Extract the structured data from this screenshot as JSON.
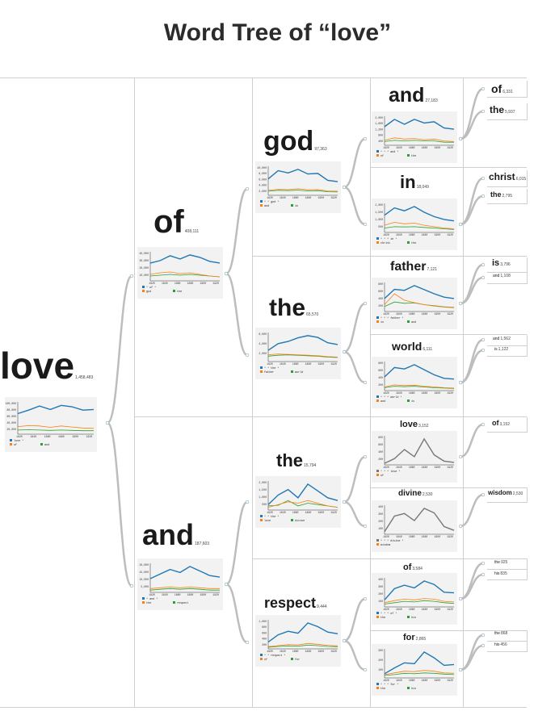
{
  "title": "Word Tree of “love”",
  "colors": {
    "blue": "#1f77b4",
    "orange": "#ff7f0e",
    "green": "#2ca02c",
    "gray": "#777777",
    "connector": "#bdbdbd"
  },
  "axis": {
    "years": [
      "1820",
      "1840",
      "1860",
      "1880",
      "1900",
      "1920"
    ]
  },
  "nodes": {
    "love": {
      "word": "love",
      "count": "1,458,483",
      "legend": [
        "love *",
        "of",
        "and"
      ],
      "yticks": [
        "100,000",
        "80,000",
        "60,000",
        "40,000",
        "20,000"
      ],
      "series": [
        [
          60,
          70,
          82,
          72,
          84,
          80,
          70,
          72
        ],
        [
          22,
          25,
          24,
          20,
          24,
          21,
          18,
          17
        ],
        [
          12,
          13,
          12,
          11,
          12,
          11,
          10,
          10
        ]
      ]
    },
    "of": {
      "word": "of",
      "count": "408,111",
      "legend": [
        "* of *",
        "god",
        "the"
      ],
      "yticks": [
        "40,000",
        "30,000",
        "20,000",
        "10,000"
      ],
      "series": [
        [
          22,
          25,
          31,
          27,
          32,
          29,
          24,
          22
        ],
        [
          8,
          10,
          11,
          9,
          10,
          8,
          6,
          5
        ],
        [
          6,
          7,
          8,
          7,
          8,
          7,
          6,
          5
        ]
      ]
    },
    "and": {
      "word": "and",
      "count": "187,603",
      "legend": [
        "* and *",
        "the",
        "respect"
      ],
      "yticks": [
        "20,000",
        "15,000",
        "10,000",
        "5,000"
      ],
      "series": [
        [
          9,
          12,
          15,
          13,
          17,
          14,
          11,
          10
        ],
        [
          2.5,
          3,
          3.5,
          3,
          3.5,
          3,
          2.5,
          2.5
        ],
        [
          1.5,
          2,
          2.5,
          2,
          2.5,
          2,
          1.5,
          1.5
        ]
      ]
    },
    "god": {
      "word": "god",
      "count": "97,363",
      "legend": [
        "* * god *",
        "and",
        "in"
      ],
      "yticks": [
        "10,000",
        "8,000",
        "6,000",
        "4,000",
        "2,000"
      ],
      "series": [
        [
          6000,
          9000,
          8200,
          9500,
          7800,
          8000,
          5500,
          5000
        ],
        [
          1800,
          2200,
          2100,
          2400,
          2000,
          2100,
          1600,
          1500
        ],
        [
          1500,
          1800,
          1700,
          1900,
          1600,
          1700,
          1300,
          1200
        ]
      ]
    },
    "the_of": {
      "word": "the",
      "count": "65,570",
      "legend": [
        "* * the *",
        "father",
        "world"
      ],
      "yticks": [
        "6,000",
        "4,000",
        "2,000"
      ],
      "series": [
        [
          2500,
          4000,
          4500,
          5300,
          5800,
          5400,
          4200,
          3800
        ],
        [
          1500,
          1700,
          1600,
          1500,
          1400,
          1300,
          1100,
          1000
        ],
        [
          1200,
          1400,
          1500,
          1400,
          1300,
          1200,
          1000,
          900
        ]
      ]
    },
    "the_and": {
      "word": "the",
      "count": "15,794",
      "legend": [
        "* * the *",
        "love",
        "divine"
      ],
      "yticks": [
        "2,000",
        "1,500",
        "1,000",
        "500"
      ],
      "series": [
        [
          400,
          1100,
          1500,
          900,
          1900,
          1400,
          900,
          700
        ],
        [
          200,
          400,
          600,
          500,
          700,
          500,
          300,
          200
        ],
        [
          300,
          350,
          700,
          300,
          500,
          400,
          300,
          200
        ]
      ]
    },
    "respect": {
      "word": "respect",
      "count": "9,444",
      "legend": [
        "* * respect *",
        "of",
        "for"
      ],
      "yticks": [
        "1,000",
        "800",
        "600",
        "400",
        "200"
      ],
      "series": [
        [
          250,
          520,
          650,
          580,
          960,
          820,
          620,
          560
        ],
        [
          80,
          120,
          160,
          150,
          200,
          170,
          130,
          110
        ],
        [
          60,
          90,
          110,
          100,
          140,
          120,
          90,
          80
        ]
      ]
    },
    "and3": {
      "word": "and",
      "count": "27,183",
      "legend": [
        "* * * and *",
        "of",
        "the"
      ],
      "yticks": [
        "2,000",
        "1,600",
        "1,200",
        "800",
        "400"
      ],
      "series": [
        [
          1500,
          2100,
          1700,
          2100,
          1800,
          1900,
          1400,
          1300
        ],
        [
          400,
          600,
          500,
          550,
          450,
          500,
          350,
          300
        ],
        [
          300,
          400,
          350,
          400,
          350,
          350,
          250,
          250
        ]
      ]
    },
    "in3": {
      "word": "in",
      "count": "18,049",
      "legend": [
        "* * * in *",
        "christ",
        "the"
      ],
      "yticks": [
        "2,000",
        "1,500",
        "1,000",
        "500"
      ],
      "series": [
        [
          1200,
          1700,
          1500,
          1800,
          1400,
          1100,
          900,
          800
        ],
        [
          500,
          700,
          600,
          650,
          500,
          400,
          300,
          250
        ],
        [
          300,
          400,
          380,
          400,
          350,
          300,
          250,
          200
        ]
      ]
    },
    "father": {
      "word": "father",
      "count": "7,121",
      "legend": [
        "* * * father *",
        "is",
        "and"
      ],
      "yticks": [
        "800",
        "600",
        "400",
        "200"
      ],
      "series": [
        [
          380,
          650,
          620,
          760,
          640,
          520,
          420,
          380
        ],
        [
          200,
          520,
          330,
          260,
          200,
          160,
          130,
          110
        ],
        [
          150,
          280,
          240,
          250,
          200,
          170,
          140,
          120
        ]
      ]
    },
    "world": {
      "word": "world",
      "count": "6,111",
      "legend": [
        "* * * world *",
        "and",
        "is"
      ],
      "yticks": [
        "800",
        "600",
        "400",
        "200"
      ],
      "series": [
        [
          380,
          640,
          600,
          720,
          580,
          440,
          340,
          320
        ],
        [
          100,
          160,
          140,
          150,
          120,
          100,
          80,
          70
        ],
        [
          80,
          120,
          110,
          120,
          100,
          80,
          70,
          60
        ]
      ]
    },
    "love3": {
      "word": "love",
      "count": "3,152",
      "legend": [
        "* * * love *",
        "of"
      ],
      "yticks": [
        "800",
        "600",
        "400",
        "200"
      ],
      "series": [
        [
          50,
          200,
          490,
          260,
          830,
          320,
          120,
          80
        ]
      ]
    },
    "divine": {
      "word": "divine",
      "count": "2,530",
      "legend": [
        "* * * divine *",
        "wisdom"
      ],
      "yticks": [
        "400",
        "300",
        "200",
        "100"
      ],
      "series": [
        [
          40,
          280,
          320,
          210,
          400,
          330,
          120,
          60
        ]
      ]
    },
    "of3": {
      "word": "of",
      "count": "3,584",
      "legend": [
        "* * * of *",
        "the",
        "his"
      ],
      "yticks": [
        "400",
        "300",
        "200",
        "100"
      ],
      "series": [
        [
          100,
          260,
          310,
          270,
          370,
          320,
          210,
          200
        ],
        [
          60,
          90,
          110,
          100,
          120,
          110,
          80,
          70
        ],
        [
          40,
          60,
          80,
          70,
          90,
          80,
          60,
          50
        ]
      ]
    },
    "for3": {
      "word": "for",
      "count": "2,865",
      "legend": [
        "* * * for *",
        "the",
        "his"
      ],
      "yticks": [
        "300",
        "200",
        "100"
      ],
      "series": [
        [
          50,
          120,
          180,
          170,
          310,
          240,
          150,
          160
        ],
        [
          40,
          60,
          80,
          75,
          90,
          80,
          60,
          55
        ],
        [
          30,
          40,
          55,
          50,
          60,
          55,
          45,
          40
        ]
      ]
    }
  },
  "leaves": [
    {
      "word": "of",
      "count": "6,331"
    },
    {
      "word": "the",
      "count": "5,937"
    },
    {
      "word": "christ",
      "count": "6,015"
    },
    {
      "word": "the",
      "count": "2,795"
    },
    {
      "word": "is",
      "count": "3,796"
    },
    {
      "word": "and",
      "count": "1,108"
    },
    {
      "word": "and",
      "count": "1,562"
    },
    {
      "word": "is",
      "count": "1,122"
    },
    {
      "word": "of",
      "count": "3,152"
    },
    {
      "word": "wisdom",
      "count": "2,530"
    },
    {
      "word": "the",
      "count": "925"
    },
    {
      "word": "his",
      "count": "835"
    },
    {
      "word": "the",
      "count": "868"
    },
    {
      "word": "his",
      "count": "456"
    }
  ]
}
